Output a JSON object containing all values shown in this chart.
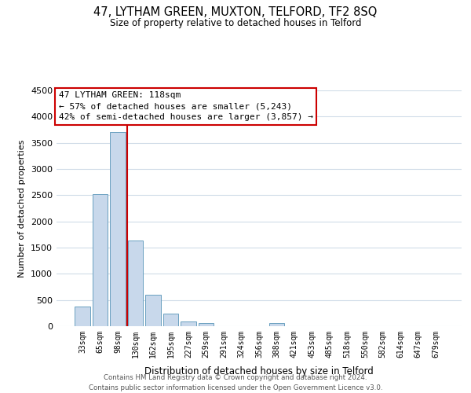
{
  "title": "47, LYTHAM GREEN, MUXTON, TELFORD, TF2 8SQ",
  "subtitle": "Size of property relative to detached houses in Telford",
  "xlabel": "Distribution of detached houses by size in Telford",
  "ylabel": "Number of detached properties",
  "categories": [
    "33sqm",
    "65sqm",
    "98sqm",
    "130sqm",
    "162sqm",
    "195sqm",
    "227sqm",
    "259sqm",
    "291sqm",
    "324sqm",
    "356sqm",
    "388sqm",
    "421sqm",
    "453sqm",
    "485sqm",
    "518sqm",
    "550sqm",
    "582sqm",
    "614sqm",
    "647sqm",
    "679sqm"
  ],
  "values": [
    380,
    2520,
    3700,
    1630,
    600,
    245,
    95,
    55,
    0,
    0,
    0,
    55,
    0,
    0,
    0,
    0,
    0,
    0,
    0,
    0,
    0
  ],
  "bar_color": "#c8d8eb",
  "bar_edge_color": "#6aa0c0",
  "vline_color": "#cc0000",
  "annotation_title": "47 LYTHAM GREEN: 118sqm",
  "annotation_line1": "← 57% of detached houses are smaller (5,243)",
  "annotation_line2": "42% of semi-detached houses are larger (3,857) →",
  "annotation_box_color": "#ffffff",
  "annotation_box_edge_color": "#cc0000",
  "ylim": [
    0,
    4500
  ],
  "yticks": [
    0,
    500,
    1000,
    1500,
    2000,
    2500,
    3000,
    3500,
    4000,
    4500
  ],
  "footer_line1": "Contains HM Land Registry data © Crown copyright and database right 2024.",
  "footer_line2": "Contains public sector information licensed under the Open Government Licence v3.0.",
  "background_color": "#ffffff",
  "grid_color": "#d0dce8"
}
